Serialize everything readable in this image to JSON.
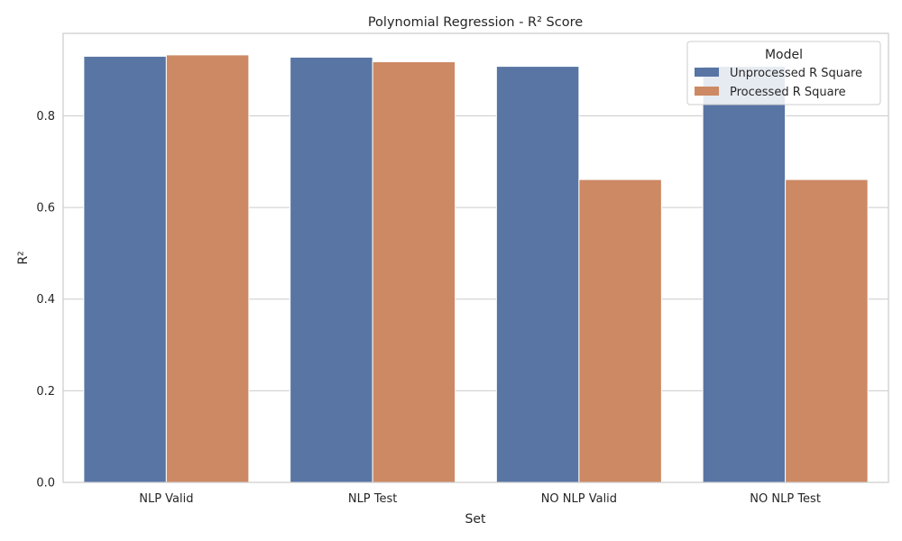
{
  "chart_data": {
    "type": "bar",
    "title": "Polynomial Regression - R² Score",
    "xlabel": "Set",
    "ylabel": "R²",
    "categories": [
      "NLP Valid",
      "NLP Test",
      "NO NLP Valid",
      "NO NLP Test"
    ],
    "series": [
      {
        "name": "Unprocessed R Square",
        "color": "#5875a4",
        "values": [
          0.93,
          0.928,
          0.908,
          0.908
        ]
      },
      {
        "name": "Processed R Square",
        "color": "#cc8963",
        "values": [
          0.933,
          0.918,
          0.661,
          0.661
        ]
      }
    ],
    "ylim": [
      0,
      0.98
    ],
    "yticks": [
      "0.0",
      "0.2",
      "0.4",
      "0.6",
      "0.8"
    ],
    "grid": true,
    "legend": {
      "title": "Model",
      "position": "top-right"
    }
  }
}
